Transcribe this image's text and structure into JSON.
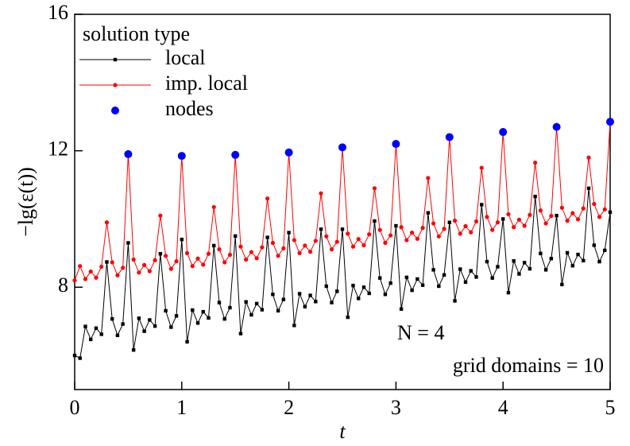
{
  "chart_data": {
    "type": "line",
    "x_label": "t",
    "y_label": "−lg(ε(t))",
    "legend_title": "solution type",
    "annotations": [
      "N = 4",
      "grid domains = 10"
    ],
    "xlim": [
      0,
      5
    ],
    "xticks": [
      0,
      1,
      2,
      3,
      4,
      5
    ],
    "ylim": [
      5,
      16
    ],
    "yticks": [
      8,
      12,
      16
    ],
    "legend": "upper-left",
    "x": [
      0,
      0.05,
      0.1,
      0.15,
      0.2,
      0.25,
      0.3,
      0.35,
      0.4,
      0.45,
      0.5,
      0.55,
      0.6,
      0.65,
      0.7,
      0.75,
      0.8,
      0.85,
      0.9,
      0.95,
      1,
      1.05,
      1.1,
      1.15,
      1.2,
      1.25,
      1.3,
      1.35,
      1.4,
      1.45,
      1.5,
      1.55,
      1.6,
      1.65,
      1.7,
      1.75,
      1.8,
      1.85,
      1.9,
      1.95,
      2,
      2.05,
      2.1,
      2.15,
      2.2,
      2.25,
      2.3,
      2.35,
      2.4,
      2.45,
      2.5,
      2.55,
      2.6,
      2.65,
      2.7,
      2.75,
      2.8,
      2.85,
      2.9,
      2.95,
      3,
      3.05,
      3.1,
      3.15,
      3.2,
      3.25,
      3.3,
      3.35,
      3.4,
      3.45,
      3.5,
      3.55,
      3.6,
      3.65,
      3.7,
      3.75,
      3.8,
      3.85,
      3.9,
      3.95,
      4,
      4.05,
      4.1,
      4.15,
      4.2,
      4.25,
      4.3,
      4.35,
      4.4,
      4.45,
      4.5,
      4.55,
      4.6,
      4.65,
      4.7,
      4.75,
      4.8,
      4.85,
      4.9,
      4.95,
      5
    ],
    "series": [
      {
        "name": "local",
        "color": "#000000",
        "marker": "square",
        "values": [
          6.0,
          5.92,
          6.85,
          6.47,
          6.8,
          6.62,
          8.74,
          7.07,
          6.59,
          6.92,
          9.3,
          6.16,
          7.09,
          6.71,
          7.04,
          6.86,
          8.98,
          7.31,
          6.83,
          7.16,
          9.4,
          6.4,
          7.33,
          6.95,
          7.28,
          7.1,
          9.22,
          7.55,
          7.07,
          7.4,
          9.5,
          6.64,
          7.57,
          7.19,
          7.52,
          7.34,
          9.46,
          7.79,
          7.31,
          7.64,
          9.6,
          6.88,
          7.81,
          7.43,
          7.76,
          7.58,
          9.7,
          8.03,
          7.55,
          7.88,
          9.7,
          7.12,
          8.05,
          7.67,
          8.0,
          7.82,
          9.94,
          8.27,
          7.79,
          8.12,
          9.8,
          7.36,
          8.29,
          7.91,
          8.24,
          8.06,
          10.18,
          8.51,
          8.03,
          8.36,
          9.9,
          7.6,
          8.53,
          8.15,
          8.48,
          8.3,
          10.42,
          8.75,
          8.27,
          8.6,
          10.0,
          7.84,
          8.77,
          8.39,
          8.72,
          8.54,
          10.66,
          8.99,
          8.51,
          8.84,
          10.1,
          8.08,
          9.01,
          8.63,
          8.96,
          8.78,
          10.9,
          9.23,
          8.75,
          9.08,
          10.2
        ]
      },
      {
        "name": "imp. local",
        "color": "#ff0000",
        "marker": "circle",
        "values": [
          8.2,
          8.62,
          8.24,
          8.46,
          8.28,
          8.6,
          9.9,
          8.73,
          8.35,
          8.57,
          11.9,
          8.81,
          8.43,
          8.65,
          8.47,
          8.79,
          10.1,
          8.92,
          8.54,
          8.76,
          11.85,
          9.0,
          8.62,
          8.84,
          8.66,
          8.98,
          10.35,
          9.11,
          8.73,
          8.95,
          11.88,
          9.19,
          8.81,
          9.03,
          8.85,
          9.17,
          10.6,
          9.3,
          8.92,
          9.14,
          11.95,
          9.38,
          9.0,
          9.22,
          9.04,
          9.36,
          10.75,
          9.49,
          9.11,
          9.33,
          12.1,
          9.57,
          9.19,
          9.41,
          9.23,
          9.55,
          10.9,
          9.68,
          9.3,
          9.52,
          12.2,
          9.76,
          9.38,
          9.6,
          9.42,
          9.74,
          11.2,
          9.87,
          9.49,
          9.71,
          12.4,
          9.95,
          9.57,
          9.79,
          9.61,
          9.93,
          11.5,
          10.06,
          9.68,
          9.9,
          12.55,
          10.14,
          9.76,
          9.98,
          9.8,
          10.12,
          11.65,
          10.25,
          9.87,
          10.09,
          12.7,
          10.33,
          9.95,
          10.17,
          9.99,
          10.31,
          11.8,
          10.44,
          10.06,
          10.28,
          12.85
        ]
      }
    ],
    "nodes": {
      "name": "nodes",
      "color": "#0000ff",
      "x": [
        0.5,
        1,
        1.5,
        2,
        2.5,
        3,
        3.5,
        4,
        4.5,
        5
      ],
      "values": [
        11.9,
        11.85,
        11.88,
        11.95,
        12.1,
        12.2,
        12.4,
        12.55,
        12.7,
        12.85
      ]
    }
  }
}
